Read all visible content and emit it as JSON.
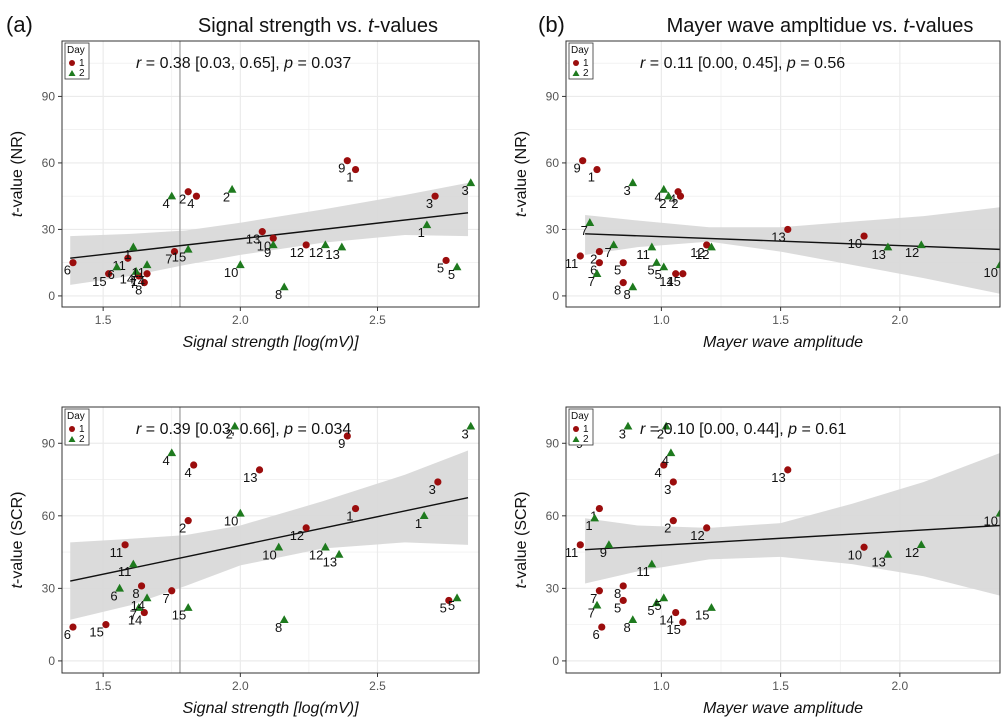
{
  "panel_labels": [
    "(a)",
    "(b)"
  ],
  "colors": {
    "day1": "#9b0d0d",
    "day2": "#1e7a1e",
    "ribbon": "#d9d9d9",
    "grid": "#ebebeb",
    "frame": "#333333",
    "vline": "#b0b0b0"
  },
  "chart_data": [
    {
      "type": "scatter",
      "title_plain": "Signal strength vs. ",
      "title_italic": "t",
      "title_suffix": "-values",
      "stat": {
        "r": "0.38 [0.03, 0.65]",
        "p": "0.037"
      },
      "xlabel": "Signal strength [log(mV)]",
      "ylabel_italic": "t",
      "ylabel_suffix": "-value (NR)",
      "xlim": [
        1.35,
        2.87
      ],
      "ylim": [
        -5,
        115
      ],
      "xticks": [
        1.5,
        2.0,
        2.5
      ],
      "xtick_labels": [
        "1.5",
        "2.0",
        "2.5"
      ],
      "yticks": [
        0,
        30,
        60,
        90
      ],
      "ytick_labels": [
        "0",
        "30",
        "60",
        "90"
      ],
      "vline": 1.78,
      "fit": {
        "x1": 1.38,
        "y1": 17,
        "x2": 2.83,
        "y2": 37.5
      },
      "ribbon_upper": [
        [
          1.38,
          27
        ],
        [
          1.6,
          28
        ],
        [
          1.8,
          29.5
        ],
        [
          2.0,
          33
        ],
        [
          2.3,
          39
        ],
        [
          2.6,
          45.5
        ],
        [
          2.83,
          51
        ]
      ],
      "ribbon_lower": [
        [
          1.38,
          5
        ],
        [
          1.6,
          9
        ],
        [
          1.8,
          14
        ],
        [
          2.0,
          18.5
        ],
        [
          2.3,
          24
        ],
        [
          2.6,
          27.5
        ],
        [
          2.83,
          27
        ]
      ],
      "legend": {
        "title": "Day",
        "items": [
          "1",
          "2"
        ]
      },
      "series": [
        {
          "name": "1",
          "points": [
            {
              "x": 1.39,
              "y": 15,
              "label": "6"
            },
            {
              "x": 1.52,
              "y": 10,
              "label": "15"
            },
            {
              "x": 1.59,
              "y": 17,
              "label": "11"
            },
            {
              "x": 1.63,
              "y": 9,
              "label": "7"
            },
            {
              "x": 1.65,
              "y": 6,
              "label": "8"
            },
            {
              "x": 1.66,
              "y": 10,
              "label": "14"
            },
            {
              "x": 1.76,
              "y": 20,
              "label": "7"
            },
            {
              "x": 1.84,
              "y": 45,
              "label": "4"
            },
            {
              "x": 1.81,
              "y": 47,
              "label": "2"
            },
            {
              "x": 2.08,
              "y": 29,
              "label": "13"
            },
            {
              "x": 2.12,
              "y": 26,
              "label": "10"
            },
            {
              "x": 2.24,
              "y": 23,
              "label": "12"
            },
            {
              "x": 2.39,
              "y": 61,
              "label": "9"
            },
            {
              "x": 2.42,
              "y": 57,
              "label": "1"
            },
            {
              "x": 2.71,
              "y": 45,
              "label": "3"
            },
            {
              "x": 2.75,
              "y": 16,
              "label": "5"
            }
          ]
        },
        {
          "name": "2",
          "points": [
            {
              "x": 1.55,
              "y": 13,
              "label": "6"
            },
            {
              "x": 1.61,
              "y": 22,
              "label": "1"
            },
            {
              "x": 1.62,
              "y": 11,
              "label": "14"
            },
            {
              "x": 1.66,
              "y": 14,
              "label": "11"
            },
            {
              "x": 1.75,
              "y": 45,
              "label": "4"
            },
            {
              "x": 1.81,
              "y": 21,
              "label": "15"
            },
            {
              "x": 1.97,
              "y": 48,
              "label": "2"
            },
            {
              "x": 2.0,
              "y": 14,
              "label": "10"
            },
            {
              "x": 2.12,
              "y": 23,
              "label": "9"
            },
            {
              "x": 2.16,
              "y": 4,
              "label": "8"
            },
            {
              "x": 2.31,
              "y": 23,
              "label": "12"
            },
            {
              "x": 2.37,
              "y": 22,
              "label": "13"
            },
            {
              "x": 2.68,
              "y": 32,
              "label": "1"
            },
            {
              "x": 2.79,
              "y": 13,
              "label": "5"
            },
            {
              "x": 2.84,
              "y": 51,
              "label": "3"
            }
          ]
        }
      ]
    },
    {
      "type": "scatter",
      "title_plain": "Mayer wave ampltidue vs. ",
      "title_italic": "t",
      "title_suffix": "-values",
      "stat": {
        "r": "0.11 [0.00, 0.45]",
        "p": "0.56"
      },
      "xlabel": "Mayer wave amplitude",
      "ylabel_italic": "t",
      "ylabel_suffix": "-value (NR)",
      "xlim": [
        0.6,
        2.42
      ],
      "ylim": [
        -5,
        115
      ],
      "xticks": [
        1.0,
        1.5,
        2.0
      ],
      "xtick_labels": [
        "1.0",
        "1.5",
        "2.0"
      ],
      "yticks": [
        0,
        30,
        60,
        90
      ],
      "ytick_labels": [
        "0",
        "30",
        "60",
        "90"
      ],
      "fit": {
        "x1": 0.68,
        "y1": 28,
        "x2": 2.42,
        "y2": 21
      },
      "ribbon_upper": [
        [
          0.68,
          36.5
        ],
        [
          0.9,
          34
        ],
        [
          1.2,
          31
        ],
        [
          1.5,
          31
        ],
        [
          1.8,
          33.5
        ],
        [
          2.1,
          36
        ],
        [
          2.42,
          40
        ]
      ],
      "ribbon_lower": [
        [
          0.68,
          18.5
        ],
        [
          0.9,
          22
        ],
        [
          1.2,
          24.5
        ],
        [
          1.5,
          20
        ],
        [
          1.8,
          14
        ],
        [
          2.1,
          8
        ],
        [
          2.42,
          1
        ]
      ],
      "legend": {
        "title": "Day",
        "items": [
          "1",
          "2"
        ]
      },
      "series": [
        {
          "name": "1",
          "points": [
            {
              "x": 0.67,
              "y": 61,
              "label": "9"
            },
            {
              "x": 0.73,
              "y": 57,
              "label": "1"
            },
            {
              "x": 0.66,
              "y": 18,
              "label": "11"
            },
            {
              "x": 0.74,
              "y": 20,
              "label": "2"
            },
            {
              "x": 0.74,
              "y": 15,
              "label": "6"
            },
            {
              "x": 0.84,
              "y": 15,
              "label": "5"
            },
            {
              "x": 0.84,
              "y": 6,
              "label": "8"
            },
            {
              "x": 1.07,
              "y": 47,
              "label": "4"
            },
            {
              "x": 1.08,
              "y": 45,
              "label": "2"
            },
            {
              "x": 1.06,
              "y": 10,
              "label": "14"
            },
            {
              "x": 1.09,
              "y": 10,
              "label": "15"
            },
            {
              "x": 1.19,
              "y": 23,
              "label": "12"
            },
            {
              "x": 1.53,
              "y": 30,
              "label": "13"
            },
            {
              "x": 1.85,
              "y": 27,
              "label": "10"
            }
          ]
        },
        {
          "name": "2",
          "points": [
            {
              "x": 0.7,
              "y": 33,
              "label": "7"
            },
            {
              "x": 0.73,
              "y": 10,
              "label": "7"
            },
            {
              "x": 0.8,
              "y": 23,
              "label": "7"
            },
            {
              "x": 0.88,
              "y": 4,
              "label": "8"
            },
            {
              "x": 0.88,
              "y": 51,
              "label": "3"
            },
            {
              "x": 0.96,
              "y": 22,
              "label": "11"
            },
            {
              "x": 0.98,
              "y": 15,
              "label": "5"
            },
            {
              "x": 1.01,
              "y": 13,
              "label": "5"
            },
            {
              "x": 1.01,
              "y": 48,
              "label": "4"
            },
            {
              "x": 1.03,
              "y": 45,
              "label": "2"
            },
            {
              "x": 1.21,
              "y": 22,
              "label": "12"
            },
            {
              "x": 1.95,
              "y": 22,
              "label": "13"
            },
            {
              "x": 2.09,
              "y": 23,
              "label": "12"
            },
            {
              "x": 2.42,
              "y": 14,
              "label": "10"
            }
          ]
        }
      ]
    },
    {
      "type": "scatter",
      "stat": {
        "r": "0.39  [0.03, 0.66]",
        "p": "0.034"
      },
      "xlabel": "Signal strength [log(mV)]",
      "ylabel_italic": "t",
      "ylabel_suffix": "-value (SCR)",
      "xlim": [
        1.35,
        2.87
      ],
      "ylim": [
        -5,
        105
      ],
      "xticks": [
        1.5,
        2.0,
        2.5
      ],
      "xtick_labels": [
        "1.5",
        "2.0",
        "2.5"
      ],
      "yticks": [
        0,
        30,
        60,
        90
      ],
      "ytick_labels": [
        "0",
        "30",
        "60",
        "90"
      ],
      "vline": 1.78,
      "fit": {
        "x1": 1.38,
        "y1": 33,
        "x2": 2.83,
        "y2": 67.5
      },
      "ribbon_upper": [
        [
          1.38,
          49
        ],
        [
          1.6,
          50.5
        ],
        [
          1.8,
          52
        ],
        [
          2.0,
          56
        ],
        [
          2.3,
          66
        ],
        [
          2.6,
          77
        ],
        [
          2.83,
          87
        ]
      ],
      "ribbon_lower": [
        [
          1.38,
          17
        ],
        [
          1.6,
          23
        ],
        [
          1.8,
          31
        ],
        [
          2.0,
          39.5
        ],
        [
          2.3,
          46.5
        ],
        [
          2.6,
          49
        ],
        [
          2.83,
          48
        ]
      ],
      "legend": {
        "title": "Day",
        "items": [
          "1",
          "2"
        ]
      },
      "series": [
        {
          "name": "1",
          "points": [
            {
              "x": 1.39,
              "y": 14,
              "label": "6"
            },
            {
              "x": 1.51,
              "y": 15,
              "label": "15"
            },
            {
              "x": 1.58,
              "y": 48,
              "label": "11"
            },
            {
              "x": 1.64,
              "y": 31,
              "label": "8"
            },
            {
              "x": 1.65,
              "y": 20,
              "label": "14"
            },
            {
              "x": 1.75,
              "y": 29,
              "label": "7"
            },
            {
              "x": 1.83,
              "y": 81,
              "label": "4"
            },
            {
              "x": 1.81,
              "y": 58,
              "label": "2"
            },
            {
              "x": 2.07,
              "y": 79,
              "label": "13"
            },
            {
              "x": 2.24,
              "y": 55,
              "label": "12"
            },
            {
              "x": 2.39,
              "y": 93,
              "label": "9"
            },
            {
              "x": 2.42,
              "y": 63,
              "label": "1"
            },
            {
              "x": 2.72,
              "y": 74,
              "label": "3"
            },
            {
              "x": 2.76,
              "y": 25,
              "label": "5"
            }
          ]
        },
        {
          "name": "2",
          "points": [
            {
              "x": 1.56,
              "y": 30,
              "label": "6"
            },
            {
              "x": 1.61,
              "y": 40,
              "label": "11"
            },
            {
              "x": 1.63,
              "y": 22,
              "label": "7"
            },
            {
              "x": 1.66,
              "y": 26,
              "label": "14"
            },
            {
              "x": 1.75,
              "y": 86,
              "label": "4"
            },
            {
              "x": 1.81,
              "y": 22,
              "label": "15"
            },
            {
              "x": 1.98,
              "y": 97,
              "label": "2"
            },
            {
              "x": 2.0,
              "y": 61,
              "label": "10"
            },
            {
              "x": 2.14,
              "y": 47,
              "label": "10"
            },
            {
              "x": 2.16,
              "y": 17,
              "label": "8"
            },
            {
              "x": 2.31,
              "y": 47,
              "label": "12"
            },
            {
              "x": 2.36,
              "y": 44,
              "label": "13"
            },
            {
              "x": 2.67,
              "y": 60,
              "label": "1"
            },
            {
              "x": 2.79,
              "y": 26,
              "label": "5"
            },
            {
              "x": 2.84,
              "y": 97,
              "label": "3"
            }
          ]
        }
      ]
    },
    {
      "type": "scatter",
      "stat": {
        "r": "0.10 [0.00, 0.44]",
        "p": "0.61"
      },
      "xlabel": "Mayer wave amplitude",
      "ylabel_italic": "t",
      "ylabel_suffix": "-value (SCR)",
      "xlim": [
        0.6,
        2.42
      ],
      "ylim": [
        -5,
        105
      ],
      "xticks": [
        1.0,
        1.5,
        2.0
      ],
      "xtick_labels": [
        "1.0",
        "1.5",
        "2.0"
      ],
      "yticks": [
        0,
        30,
        60,
        90
      ],
      "ytick_labels": [
        "0",
        "30",
        "60",
        "90"
      ],
      "fit": {
        "x1": 0.68,
        "y1": 46,
        "x2": 2.42,
        "y2": 56
      },
      "ribbon_upper": [
        [
          0.68,
          59
        ],
        [
          0.9,
          56
        ],
        [
          1.2,
          55
        ],
        [
          1.5,
          57
        ],
        [
          1.8,
          65
        ],
        [
          2.1,
          74
        ],
        [
          2.42,
          86
        ]
      ],
      "ribbon_lower": [
        [
          0.68,
          32
        ],
        [
          0.9,
          37
        ],
        [
          1.2,
          42
        ],
        [
          1.5,
          43
        ],
        [
          1.8,
          40
        ],
        [
          2.1,
          35
        ],
        [
          2.42,
          27
        ]
      ],
      "legend": {
        "title": "Day",
        "items": [
          "1",
          "2"
        ]
      },
      "series": [
        {
          "name": "1",
          "points": [
            {
              "x": 0.68,
              "y": 93,
              "label": "9"
            },
            {
              "x": 0.74,
              "y": 63,
              "label": "1"
            },
            {
              "x": 0.66,
              "y": 48,
              "label": "11"
            },
            {
              "x": 0.74,
              "y": 29,
              "label": "7"
            },
            {
              "x": 0.84,
              "y": 31,
              "label": "8"
            },
            {
              "x": 0.84,
              "y": 25,
              "label": "5"
            },
            {
              "x": 0.75,
              "y": 14,
              "label": "6"
            },
            {
              "x": 1.01,
              "y": 81,
              "label": "4"
            },
            {
              "x": 1.05,
              "y": 74,
              "label": "3"
            },
            {
              "x": 1.05,
              "y": 58,
              "label": "2"
            },
            {
              "x": 1.06,
              "y": 20,
              "label": "14"
            },
            {
              "x": 1.09,
              "y": 16,
              "label": "15"
            },
            {
              "x": 1.19,
              "y": 55,
              "label": "12"
            },
            {
              "x": 1.53,
              "y": 79,
              "label": "13"
            },
            {
              "x": 1.85,
              "y": 47,
              "label": "10"
            }
          ]
        },
        {
          "name": "2",
          "points": [
            {
              "x": 0.72,
              "y": 59,
              "label": "1"
            },
            {
              "x": 0.73,
              "y": 23,
              "label": "7"
            },
            {
              "x": 0.78,
              "y": 48,
              "label": "9"
            },
            {
              "x": 0.86,
              "y": 97,
              "label": "3"
            },
            {
              "x": 0.88,
              "y": 17,
              "label": "8"
            },
            {
              "x": 0.96,
              "y": 40,
              "label": "11"
            },
            {
              "x": 0.98,
              "y": 24,
              "label": "5"
            },
            {
              "x": 1.01,
              "y": 26,
              "label": "5"
            },
            {
              "x": 1.02,
              "y": 97,
              "label": "2"
            },
            {
              "x": 1.04,
              "y": 86,
              "label": "4"
            },
            {
              "x": 1.21,
              "y": 22,
              "label": "15"
            },
            {
              "x": 1.95,
              "y": 44,
              "label": "13"
            },
            {
              "x": 2.09,
              "y": 48,
              "label": "12"
            },
            {
              "x": 2.42,
              "y": 61,
              "label": "10"
            }
          ]
        }
      ]
    }
  ]
}
